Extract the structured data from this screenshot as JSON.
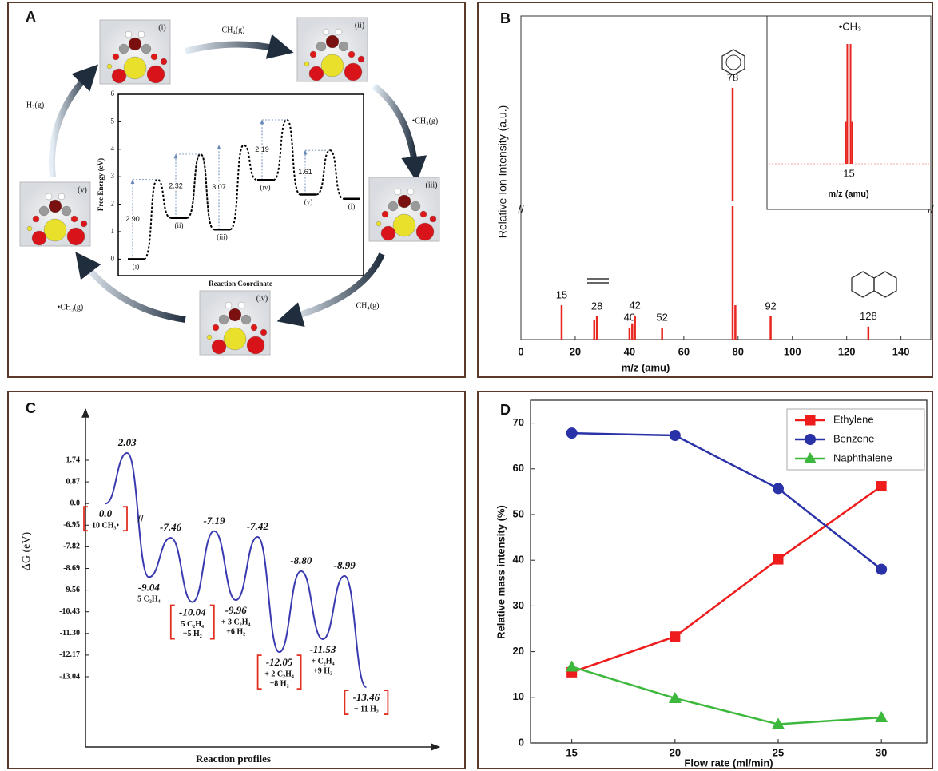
{
  "chart_data": [
    {
      "type": "energy-cycle",
      "panel": "A",
      "species": [
        "(i)",
        "(ii)",
        "(iii)",
        "(iv)",
        "(v)"
      ],
      "reactions": [
        "CH₄(g)",
        "•CH₃(g)",
        "CH₄(g)",
        "•CH₃(g)",
        "H₂(g)"
      ],
      "ylabel": "Free Energy (eV)",
      "xlabel": "Reaction Coordinate",
      "ylim": [
        -0.6,
        6
      ],
      "yticks": [
        0,
        1,
        2,
        3,
        4,
        5,
        6
      ],
      "categories": [
        "(i)",
        "(ii)",
        "(iii)",
        "(iv)",
        "(v)",
        "(i)"
      ],
      "values": [
        0,
        1.5,
        1.08,
        2.88,
        2.35,
        2.2
      ],
      "barriers": [
        2.9,
        2.32,
        3.07,
        2.19,
        1.61
      ],
      "barrier_labels": [
        "2.90",
        "2.32",
        "3.07",
        "2.19",
        "1.61"
      ],
      "color": "#000000"
    },
    {
      "type": "stem",
      "panel": "B",
      "xlabel": "m/z (amu)",
      "ylabel": "Relative Ion Intensity (a.u.)",
      "xlim": [
        0,
        151
      ],
      "xticks": [
        0,
        20,
        40,
        60,
        80,
        100,
        120,
        140
      ],
      "ylim": [
        0,
        100
      ],
      "x": [
        15,
        27,
        28,
        40,
        41,
        42,
        52,
        78,
        79,
        92,
        128
      ],
      "values": [
        10.6,
        6,
        7.2,
        3.7,
        5,
        7.4,
        3.7,
        77.8,
        10.6,
        7.2,
        4
      ],
      "labels": [
        "15",
        null,
        "28",
        "40",
        null,
        "42",
        "52",
        "78",
        null,
        "92",
        "128"
      ],
      "color": "#e8261f",
      "inset": {
        "annotation": "•CH₃",
        "xlabel": "m/z (amu)",
        "xlim": [
          5,
          25
        ],
        "xticks": [
          15
        ],
        "ylim": [
          0,
          110
        ],
        "x": [
          14.6,
          14.8,
          15.2,
          15.4
        ],
        "values": [
          35,
          100,
          100,
          35
        ]
      }
    },
    {
      "type": "profile",
      "panel": "C",
      "ylabel": "ΔG (eV)",
      "xlabel": "Reaction profiles",
      "yticks": [
        1.74,
        0.87,
        {
          "value": 0,
          "label": "0.0"
        },
        -6.95,
        -7.82,
        -8.69,
        -9.56,
        -10.43,
        {
          "value": -11.3,
          "label": "-11.30"
        },
        -12.17,
        -13.04
      ],
      "values": [
        0,
        2.03,
        -9.04,
        -7.46,
        -10.04,
        -7.19,
        -9.96,
        -7.42,
        -12.05,
        -8.8,
        -11.53,
        -8.99,
        -13.46
      ],
      "value_labels": [
        "0.0",
        "2.03",
        "-9.04",
        "-7.46",
        "-10.04",
        "-7.19",
        "-9.96",
        "-7.42",
        "-12.05",
        "-8.80",
        "-11.53",
        "-8.99",
        "-13.46"
      ],
      "species": [
        [
          "10 CH₃•"
        ],
        null,
        [
          "5 C₂H₄"
        ],
        null,
        [
          "5 C₂H₄",
          "+5 H₂"
        ],
        null,
        [
          "+ 3 C₂H₄",
          "+6 H₂"
        ],
        null,
        [
          "+ 2 C₂H₄",
          "+8 H₂"
        ],
        null,
        [
          "+ C₂H₄",
          "+9 H₂"
        ],
        null,
        [
          "+ 11 H₂"
        ]
      ],
      "color": "#3a3ab0"
    },
    {
      "type": "line",
      "panel": "D",
      "xlabel": "Flow rate (ml/min)",
      "ylabel": "Relative mass intensity (%)",
      "x": [
        15,
        20,
        25,
        30
      ],
      "xlim": [
        13,
        32.2
      ],
      "xticks": [
        15,
        20,
        25,
        30
      ],
      "ylim": [
        0,
        75
      ],
      "yticks": [
        0,
        10,
        20,
        30,
        40,
        50,
        60,
        70
      ],
      "legend": "upper right",
      "series": [
        {
          "name": "Ethylene",
          "color": "#ee1c1c",
          "marker": "square",
          "values": [
            15.5,
            23.3,
            40.2,
            56.2
          ]
        },
        {
          "name": "Benzene",
          "color": "#2a32a8",
          "marker": "circle",
          "values": [
            67.8,
            67.3,
            55.7,
            38.0
          ]
        },
        {
          "name": "Naphthalene",
          "color": "#3cb83c",
          "marker": "triangle",
          "values": [
            16.7,
            9.8,
            4.1,
            5.6
          ]
        }
      ]
    }
  ]
}
